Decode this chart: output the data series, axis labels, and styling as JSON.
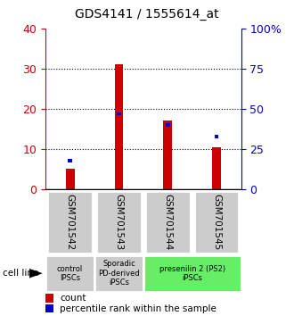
{
  "title": "GDS4141 / 1555614_at",
  "samples": [
    "GSM701542",
    "GSM701543",
    "GSM701544",
    "GSM701545"
  ],
  "counts": [
    5.2,
    31.0,
    17.2,
    10.5
  ],
  "percentile_pct": [
    18,
    47,
    40,
    33
  ],
  "left_ylim": [
    0,
    40
  ],
  "right_ylim": [
    0,
    100
  ],
  "left_yticks": [
    0,
    10,
    20,
    30,
    40
  ],
  "right_yticks": [
    0,
    25,
    50,
    75,
    100
  ],
  "right_yticklabels": [
    "0",
    "25",
    "50",
    "75",
    "100%"
  ],
  "bar_color": "#cc0000",
  "blue_color": "#0000cc",
  "red_bar_width": 0.18,
  "blue_square_size": 0.08,
  "groups": [
    {
      "label": "control\nIPSCs",
      "color": "#cccccc",
      "span": [
        0,
        1
      ]
    },
    {
      "label": "Sporadic\nPD-derived\niPSCs",
      "color": "#cccccc",
      "span": [
        1,
        2
      ]
    },
    {
      "label": "presenilin 2 (PS2)\niPSCs",
      "color": "#66ee66",
      "span": [
        2,
        4
      ]
    }
  ],
  "sample_box_color": "#cccccc",
  "cell_line_label": "cell line",
  "legend_count_label": "count",
  "legend_pct_label": "percentile rank within the sample"
}
